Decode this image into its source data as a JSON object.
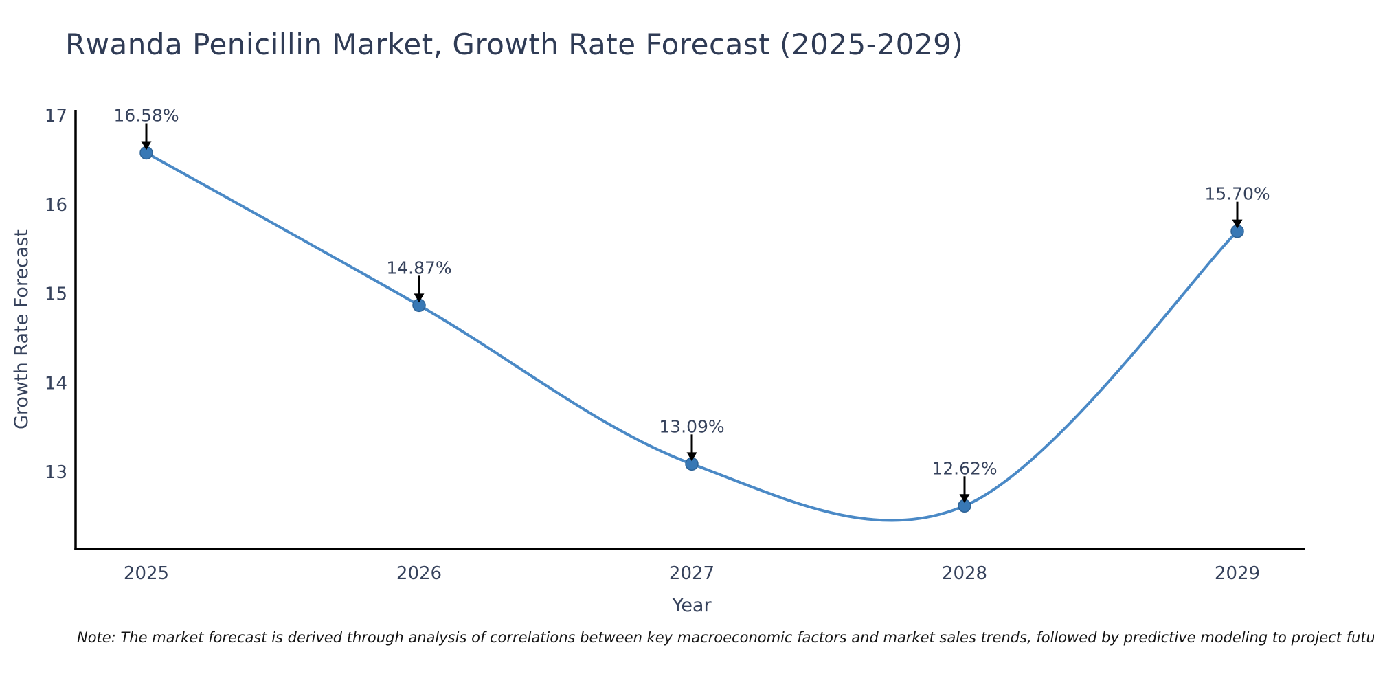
{
  "title": "Rwanda Penicillin Market, Growth Rate Forecast (2025-2029)",
  "note": "Note: The market forecast is derived through analysis of correlations between key macroeconomic factors and market sales trends, followed by predictive modeling to project future sales",
  "chart_data": {
    "type": "line",
    "title": "Rwanda Penicillin Market, Growth Rate Forecast (2025-2029)",
    "xlabel": "Year",
    "ylabel": "Growth Rate Forecast",
    "categories": [
      2025,
      2026,
      2027,
      2028,
      2029
    ],
    "values": [
      16.58,
      14.87,
      13.09,
      12.62,
      15.7
    ],
    "point_labels": [
      "16.58%",
      "14.87%",
      "13.09%",
      "12.62%",
      "15.70%"
    ],
    "yticks": [
      13,
      14,
      15,
      16,
      17
    ],
    "ylim": [
      12.1,
      17.1
    ],
    "grid": false,
    "smooth": true,
    "legend_position": "none",
    "annotations_style": "value label with black arrow pointing down to each marker",
    "colors": {
      "line": "#4a89c6",
      "marker_fill": "#3878b5",
      "marker_edge": "#2e6396",
      "axis": "#000000",
      "arrow": "#000000",
      "title_text": "#2f3b55",
      "label_text": "#36425c",
      "note_text": "#141414"
    }
  }
}
